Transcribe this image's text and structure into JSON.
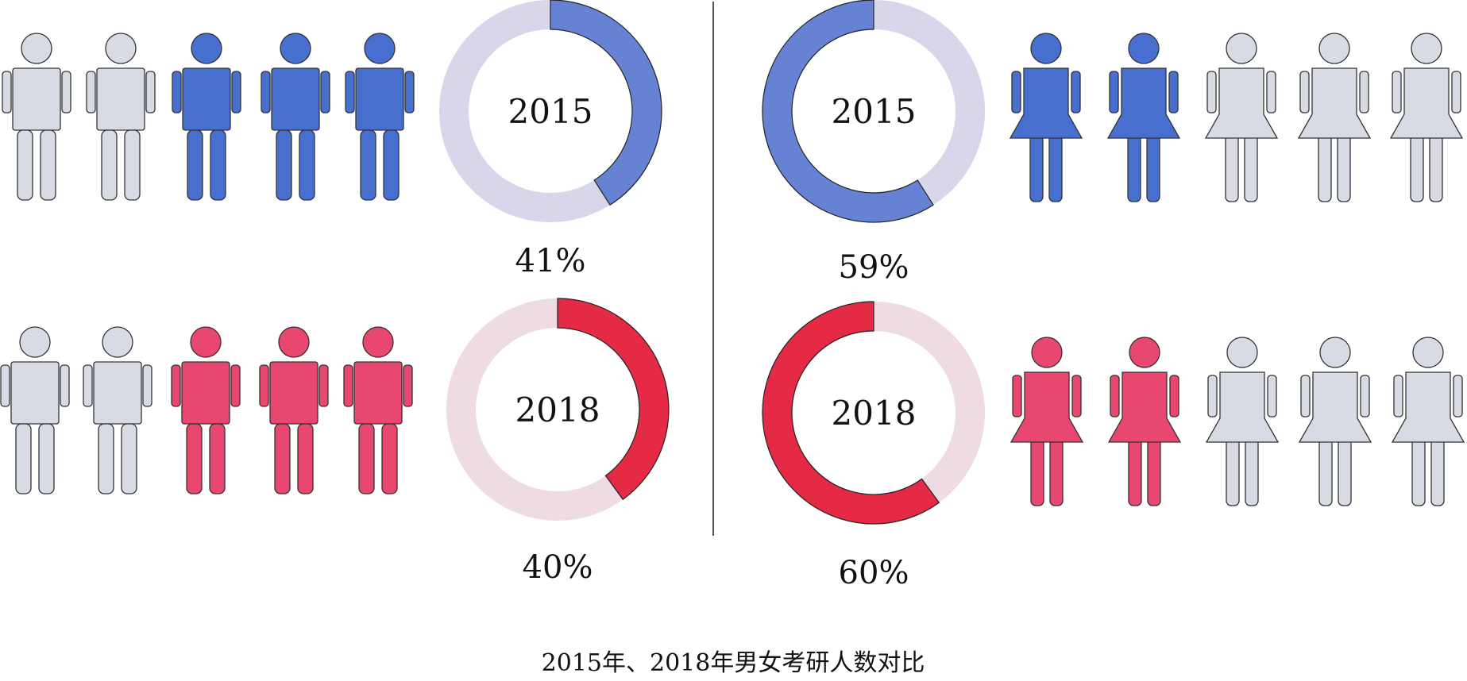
{
  "title": "2015年、2018年男女考研人数对比",
  "colors": {
    "inactive_figure": "#d8dbe4",
    "male_2015": "#466fcf",
    "female_2015": "#466fcf",
    "male_2018": "#e8476f",
    "female_2018": "#e8476f",
    "ring_track_2015": "#d7d6ea",
    "ring_fill_2015": "#6683d3",
    "ring_track_2018": "#eedbe4",
    "ring_fill_2018": "#e52a45",
    "divider": "#555555"
  },
  "chart_data": [
    {
      "type": "pie",
      "group": "male",
      "year": "2015",
      "center_label": "2015",
      "value": 41,
      "value_label": "41%",
      "icon": "male-figure-icon",
      "figures_total": 5,
      "figures_highlighted": 3
    },
    {
      "type": "pie",
      "group": "female",
      "year": "2015",
      "center_label": "2015",
      "value": 59,
      "value_label": "59%",
      "icon": "female-figure-icon",
      "figures_total": 5,
      "figures_highlighted": 2
    },
    {
      "type": "pie",
      "group": "male",
      "year": "2018",
      "center_label": "2018",
      "value": 40,
      "value_label": "40%",
      "icon": "male-figure-icon",
      "figures_total": 5,
      "figures_highlighted": 3
    },
    {
      "type": "pie",
      "group": "female",
      "year": "2018",
      "center_label": "2018",
      "value": 60,
      "value_label": "60%",
      "icon": "female-figure-icon",
      "figures_total": 5,
      "figures_highlighted": 2
    }
  ]
}
